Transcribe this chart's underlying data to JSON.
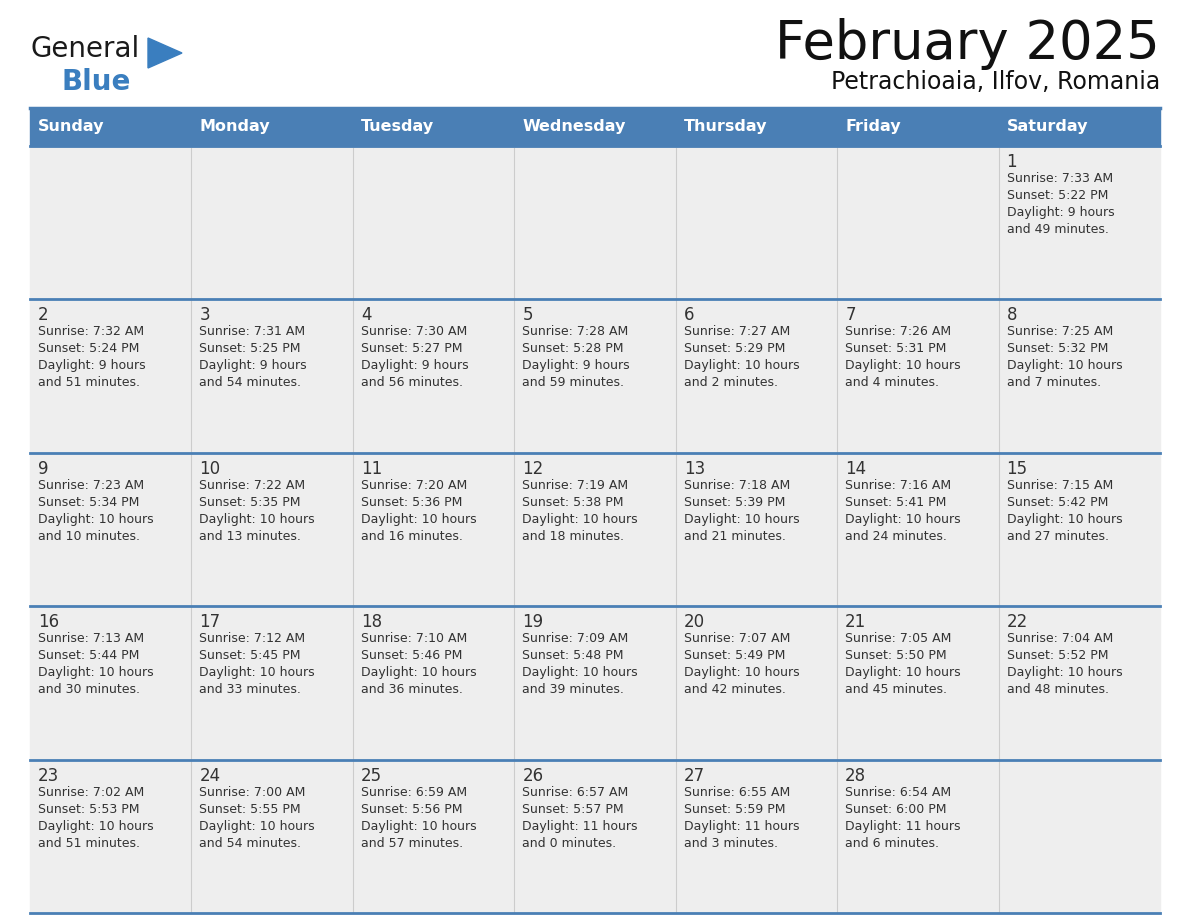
{
  "title": "February 2025",
  "subtitle": "Petrachioaia, Ilfov, Romania",
  "header_bg": "#4a7fb5",
  "header_text": "#ffffff",
  "day_names": [
    "Sunday",
    "Monday",
    "Tuesday",
    "Wednesday",
    "Thursday",
    "Friday",
    "Saturday"
  ],
  "row_bg": "#eeeeee",
  "border_color": "#4a7fb5",
  "number_color": "#333333",
  "text_color": "#333333",
  "logo_general_color": "#1a1a1a",
  "logo_blue_color": "#3a7ebf",
  "calendar": [
    [
      {
        "day": null,
        "info": ""
      },
      {
        "day": null,
        "info": ""
      },
      {
        "day": null,
        "info": ""
      },
      {
        "day": null,
        "info": ""
      },
      {
        "day": null,
        "info": ""
      },
      {
        "day": null,
        "info": ""
      },
      {
        "day": 1,
        "info": "Sunrise: 7:33 AM\nSunset: 5:22 PM\nDaylight: 9 hours\nand 49 minutes."
      }
    ],
    [
      {
        "day": 2,
        "info": "Sunrise: 7:32 AM\nSunset: 5:24 PM\nDaylight: 9 hours\nand 51 minutes."
      },
      {
        "day": 3,
        "info": "Sunrise: 7:31 AM\nSunset: 5:25 PM\nDaylight: 9 hours\nand 54 minutes."
      },
      {
        "day": 4,
        "info": "Sunrise: 7:30 AM\nSunset: 5:27 PM\nDaylight: 9 hours\nand 56 minutes."
      },
      {
        "day": 5,
        "info": "Sunrise: 7:28 AM\nSunset: 5:28 PM\nDaylight: 9 hours\nand 59 minutes."
      },
      {
        "day": 6,
        "info": "Sunrise: 7:27 AM\nSunset: 5:29 PM\nDaylight: 10 hours\nand 2 minutes."
      },
      {
        "day": 7,
        "info": "Sunrise: 7:26 AM\nSunset: 5:31 PM\nDaylight: 10 hours\nand 4 minutes."
      },
      {
        "day": 8,
        "info": "Sunrise: 7:25 AM\nSunset: 5:32 PM\nDaylight: 10 hours\nand 7 minutes."
      }
    ],
    [
      {
        "day": 9,
        "info": "Sunrise: 7:23 AM\nSunset: 5:34 PM\nDaylight: 10 hours\nand 10 minutes."
      },
      {
        "day": 10,
        "info": "Sunrise: 7:22 AM\nSunset: 5:35 PM\nDaylight: 10 hours\nand 13 minutes."
      },
      {
        "day": 11,
        "info": "Sunrise: 7:20 AM\nSunset: 5:36 PM\nDaylight: 10 hours\nand 16 minutes."
      },
      {
        "day": 12,
        "info": "Sunrise: 7:19 AM\nSunset: 5:38 PM\nDaylight: 10 hours\nand 18 minutes."
      },
      {
        "day": 13,
        "info": "Sunrise: 7:18 AM\nSunset: 5:39 PM\nDaylight: 10 hours\nand 21 minutes."
      },
      {
        "day": 14,
        "info": "Sunrise: 7:16 AM\nSunset: 5:41 PM\nDaylight: 10 hours\nand 24 minutes."
      },
      {
        "day": 15,
        "info": "Sunrise: 7:15 AM\nSunset: 5:42 PM\nDaylight: 10 hours\nand 27 minutes."
      }
    ],
    [
      {
        "day": 16,
        "info": "Sunrise: 7:13 AM\nSunset: 5:44 PM\nDaylight: 10 hours\nand 30 minutes."
      },
      {
        "day": 17,
        "info": "Sunrise: 7:12 AM\nSunset: 5:45 PM\nDaylight: 10 hours\nand 33 minutes."
      },
      {
        "day": 18,
        "info": "Sunrise: 7:10 AM\nSunset: 5:46 PM\nDaylight: 10 hours\nand 36 minutes."
      },
      {
        "day": 19,
        "info": "Sunrise: 7:09 AM\nSunset: 5:48 PM\nDaylight: 10 hours\nand 39 minutes."
      },
      {
        "day": 20,
        "info": "Sunrise: 7:07 AM\nSunset: 5:49 PM\nDaylight: 10 hours\nand 42 minutes."
      },
      {
        "day": 21,
        "info": "Sunrise: 7:05 AM\nSunset: 5:50 PM\nDaylight: 10 hours\nand 45 minutes."
      },
      {
        "day": 22,
        "info": "Sunrise: 7:04 AM\nSunset: 5:52 PM\nDaylight: 10 hours\nand 48 minutes."
      }
    ],
    [
      {
        "day": 23,
        "info": "Sunrise: 7:02 AM\nSunset: 5:53 PM\nDaylight: 10 hours\nand 51 minutes."
      },
      {
        "day": 24,
        "info": "Sunrise: 7:00 AM\nSunset: 5:55 PM\nDaylight: 10 hours\nand 54 minutes."
      },
      {
        "day": 25,
        "info": "Sunrise: 6:59 AM\nSunset: 5:56 PM\nDaylight: 10 hours\nand 57 minutes."
      },
      {
        "day": 26,
        "info": "Sunrise: 6:57 AM\nSunset: 5:57 PM\nDaylight: 11 hours\nand 0 minutes."
      },
      {
        "day": 27,
        "info": "Sunrise: 6:55 AM\nSunset: 5:59 PM\nDaylight: 11 hours\nand 3 minutes."
      },
      {
        "day": 28,
        "info": "Sunrise: 6:54 AM\nSunset: 6:00 PM\nDaylight: 11 hours\nand 6 minutes."
      },
      {
        "day": null,
        "info": ""
      }
    ]
  ],
  "fig_width": 11.88,
  "fig_height": 9.18,
  "dpi": 100
}
